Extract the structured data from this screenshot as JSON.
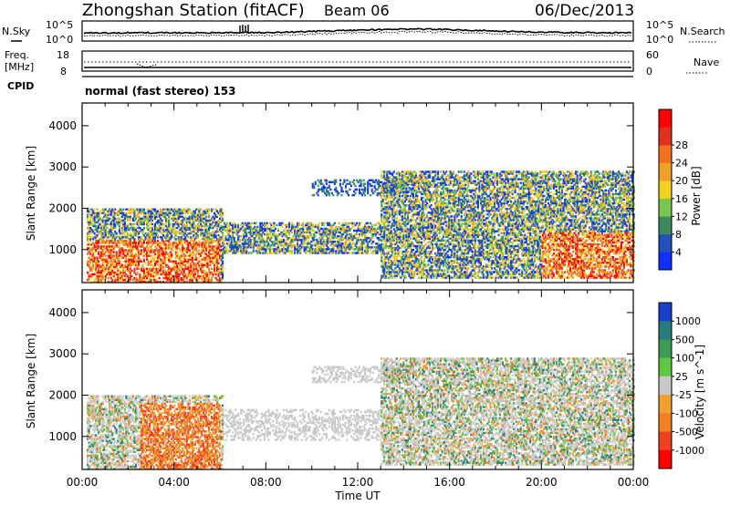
{
  "header": {
    "title": "Zhongshan Station (fitACF)",
    "beam": "Beam 06",
    "date": "06/Dec/2013"
  },
  "noise_panel": {
    "left_label": "N.Sky",
    "right_label": "N.Search",
    "left_ticks": [
      "10^5",
      "10^0"
    ],
    "right_ticks": [
      "10^5",
      "10^0"
    ]
  },
  "freq_panel": {
    "left_label": "Freq.",
    "left_unit": "[MHz]",
    "right_label": "Nave",
    "left_ticks": [
      "18",
      "8"
    ],
    "right_ticks": [
      "60",
      "0"
    ]
  },
  "cpid": {
    "label": "CPID",
    "value": "normal (fast stereo) 153"
  },
  "chart_data": [
    {
      "type": "heatmap",
      "name": "power",
      "ylabel": "Slant Range [km]",
      "yticks": [
        "1000",
        "2000",
        "3000",
        "4000"
      ],
      "ylim": [
        200,
        4550
      ],
      "xlim_hours": [
        0,
        24
      ],
      "colorbar": {
        "label": "Power [dB]",
        "ticks": [
          "4",
          "8",
          "12",
          "16",
          "20",
          "24",
          "28"
        ],
        "colors": [
          "#1030ff",
          "#2050b8",
          "#3c8c60",
          "#78c850",
          "#f0d020",
          "#f0a028",
          "#f07020",
          "#e03020",
          "#ff0000"
        ]
      },
      "regions": [
        {
          "t": [
            0.2,
            6.1
          ],
          "r": [
            200,
            2000
          ],
          "level": "mixed"
        },
        {
          "t": [
            6.1,
            13.0
          ],
          "r": [
            900,
            1650
          ],
          "level": "low-mid"
        },
        {
          "t": [
            10.0,
            14.5
          ],
          "r": [
            2300,
            2700
          ],
          "level": "low"
        },
        {
          "t": [
            13.0,
            24.0
          ],
          "r": [
            300,
            2900
          ],
          "level": "mixed"
        }
      ]
    },
    {
      "type": "heatmap",
      "name": "velocity",
      "ylabel": "Slant Range [km]",
      "yticks": [
        "1000",
        "2000",
        "3000",
        "4000"
      ],
      "ylim": [
        200,
        4550
      ],
      "xlim_hours": [
        0,
        24
      ],
      "xticks": [
        "00:00",
        "04:00",
        "08:00",
        "12:00",
        "16:00",
        "20:00",
        "00:00"
      ],
      "xlabel": "Time UT",
      "colorbar": {
        "label": "Velocity [m s^-1]",
        "ticks": [
          "1000",
          "500",
          "100",
          "25",
          "-25",
          "-100",
          "-500",
          "-1000"
        ],
        "colors": [
          "#1840c8",
          "#2a7a80",
          "#3c9c50",
          "#60c840",
          "#c8c8c8",
          "#f0a030",
          "#f08020",
          "#f04020",
          "#ff0000"
        ]
      },
      "regions": [
        {
          "t": [
            0.2,
            6.1
          ],
          "r": [
            200,
            2000
          ],
          "level": "mixed"
        },
        {
          "t": [
            6.1,
            13.0
          ],
          "r": [
            900,
            1650
          ],
          "level": "grey"
        },
        {
          "t": [
            10.0,
            14.5
          ],
          "r": [
            2300,
            2700
          ],
          "level": "grey"
        },
        {
          "t": [
            13.0,
            24.0
          ],
          "r": [
            300,
            2900
          ],
          "level": "mixed"
        }
      ]
    }
  ]
}
